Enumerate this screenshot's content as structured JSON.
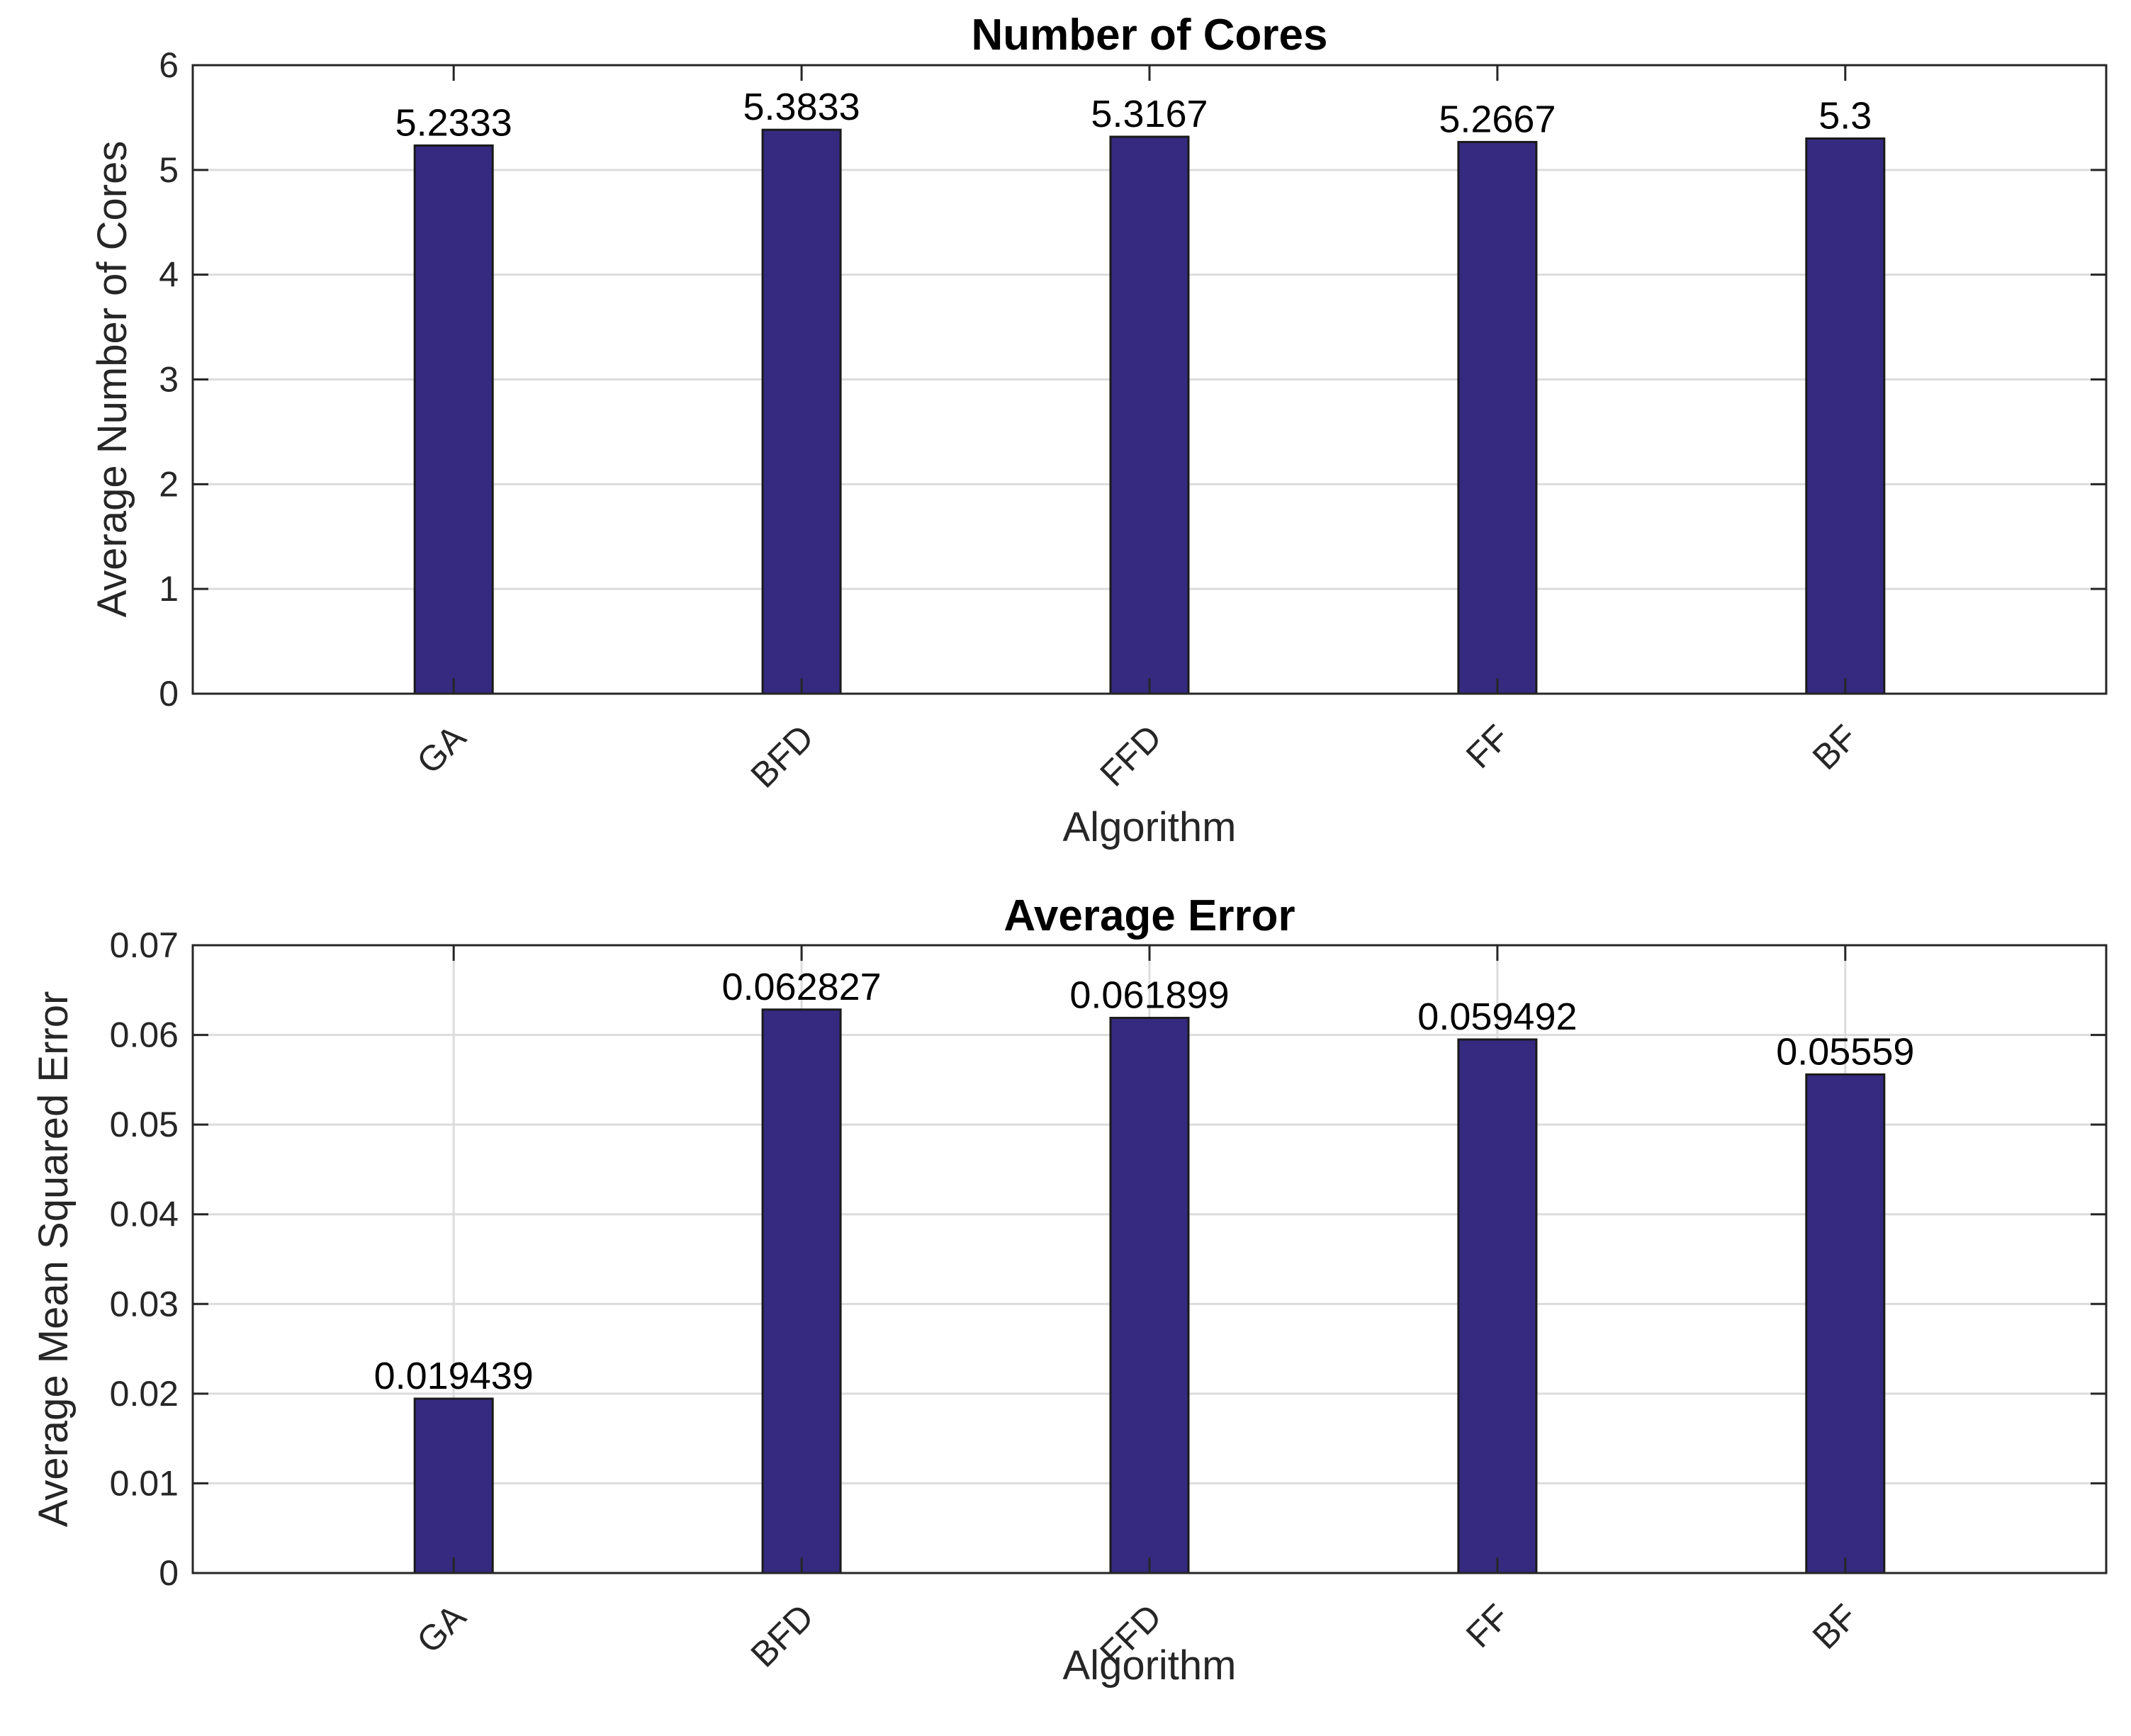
{
  "chart_data": [
    {
      "type": "bar",
      "title": "Number of Cores",
      "xlabel": "Algorithm",
      "ylabel": "Average Number of Cores",
      "categories": [
        "GA",
        "BFD",
        "FFD",
        "FF",
        "BF"
      ],
      "values": [
        5.2333,
        5.3833,
        5.3167,
        5.2667,
        5.3
      ],
      "value_labels": [
        "5.2333",
        "5.3833",
        "5.3167",
        "5.2667",
        "5.3"
      ],
      "ylim": [
        0,
        6
      ],
      "yticks": [
        0,
        1,
        2,
        3,
        4,
        5,
        6
      ],
      "ytick_labels": [
        "0",
        "1",
        "2",
        "3",
        "4",
        "5",
        "6"
      ],
      "grid": "horizontal",
      "color": "#352a80"
    },
    {
      "type": "bar",
      "title": "Average Error",
      "xlabel": "Algorithm",
      "ylabel": "Average Mean Squared Error",
      "categories": [
        "GA",
        "BFD",
        "FFD",
        "FF",
        "BF"
      ],
      "values": [
        0.019439,
        0.062827,
        0.061899,
        0.059492,
        0.05559
      ],
      "value_labels": [
        "0.019439",
        "0.062827",
        "0.061899",
        "0.059492",
        "0.05559"
      ],
      "ylim": [
        0,
        0.07
      ],
      "yticks": [
        0,
        0.01,
        0.02,
        0.03,
        0.04,
        0.05,
        0.06,
        0.07
      ],
      "ytick_labels": [
        "0",
        "0.01",
        "0.02",
        "0.03",
        "0.04",
        "0.05",
        "0.06",
        "0.07"
      ],
      "grid": "both",
      "color": "#352a80"
    }
  ]
}
